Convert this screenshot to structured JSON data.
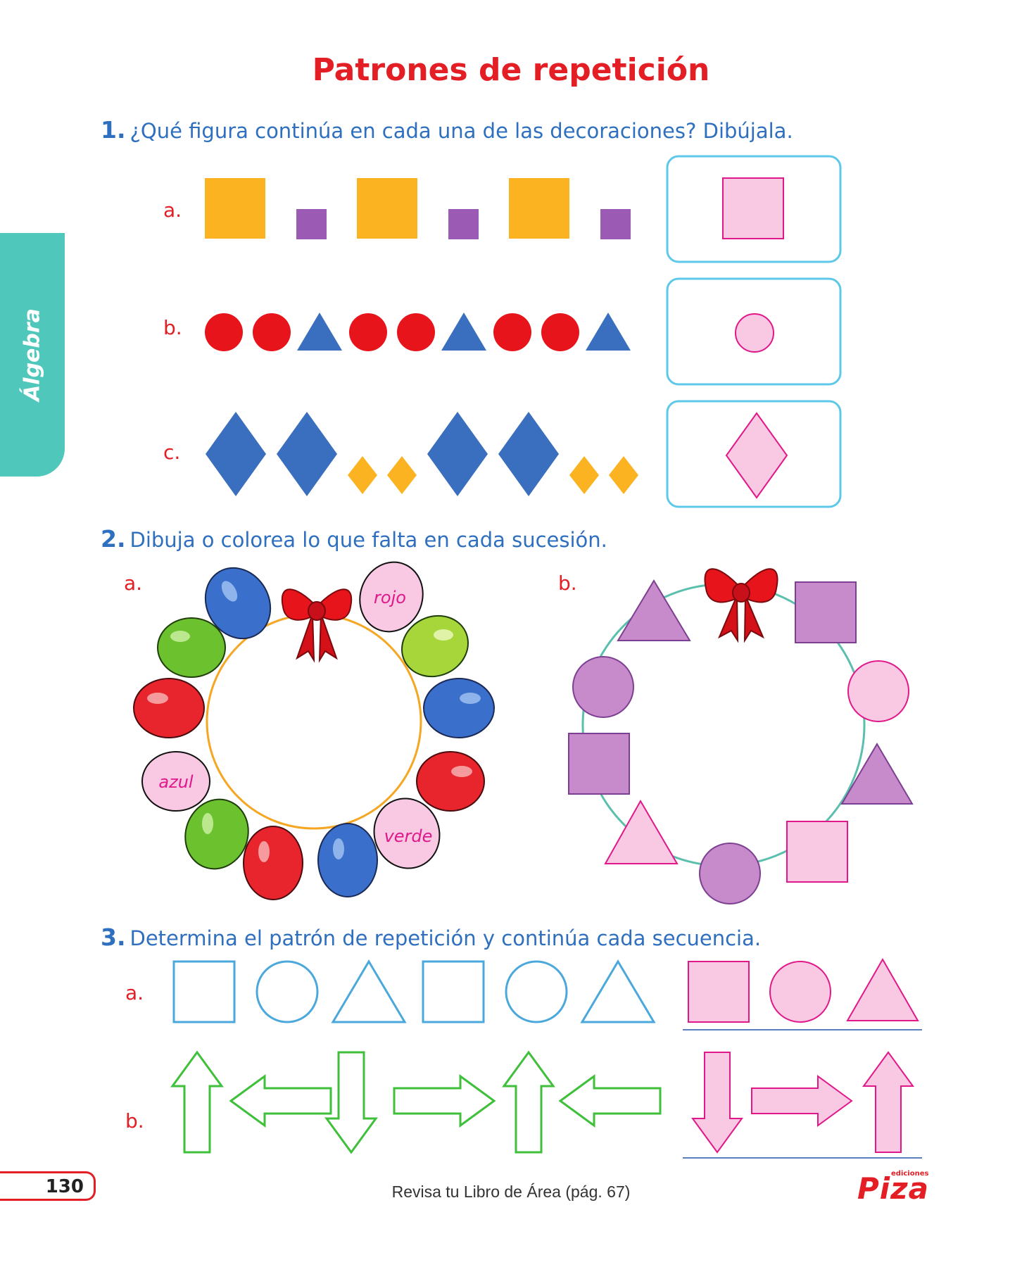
{
  "title": "Patrones de repetición",
  "side_tab": "Álgebra",
  "q1": {
    "number": "1.",
    "text": "¿Qué figura continúa en cada una de las decoraciones? Dibújala.",
    "labels": [
      "a.",
      "b.",
      "c."
    ]
  },
  "q2": {
    "number": "2.",
    "text": "Dibuja o colorea lo que falta en cada sucesión.",
    "labels": [
      "a.",
      "b."
    ],
    "balloon_words": {
      "top": "rojo",
      "left": "azul",
      "bottom": "verde"
    }
  },
  "q3": {
    "number": "3.",
    "text": "Determina el patrón de repetición y continúa cada secuencia.",
    "labels": [
      "a.",
      "b."
    ]
  },
  "page_number": "130",
  "footer": "Revisa tu Libro de Área (pág. 67)",
  "logo": {
    "brand": "Piza",
    "small": "ediciones"
  },
  "colors": {
    "title_red": "#e31e24",
    "question_blue": "#2f6fbf",
    "tab_teal": "#4fc7ba",
    "answer_pink": "#f9c9e4",
    "answer_pink_stroke": "#e0188a"
  }
}
